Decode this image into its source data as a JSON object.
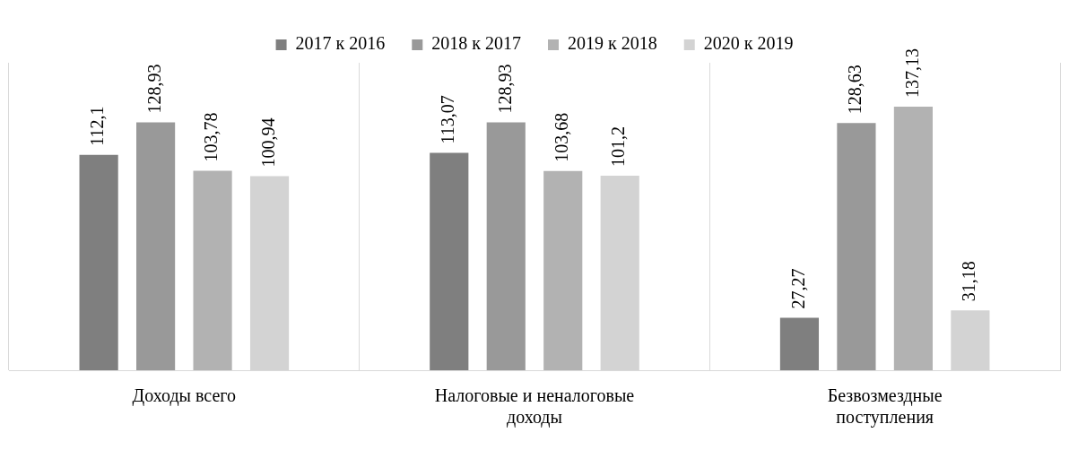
{
  "chart_data": {
    "type": "bar",
    "categories": [
      "Доходы всего",
      "Налоговые и неналоговые доходы",
      "Безвозмездные поступления"
    ],
    "series": [
      {
        "name": "2017 к 2016",
        "color": "#7f7f7f",
        "values": [
          112.1,
          113.07,
          27.27
        ],
        "value_labels": [
          "112,1",
          "113,07",
          "27,27"
        ]
      },
      {
        "name": "2018 к 2017",
        "color": "#999999",
        "values": [
          128.93,
          128.93,
          128.63
        ],
        "value_labels": [
          "128,93",
          "128,93",
          "128,63"
        ]
      },
      {
        "name": "2019 к 2018",
        "color": "#b2b2b2",
        "values": [
          103.78,
          103.68,
          137.13
        ],
        "value_labels": [
          "103,78",
          "103,68",
          "137,13"
        ]
      },
      {
        "name": "2020 к 2019",
        "color": "#d3d3d3",
        "values": [
          100.94,
          101.2,
          31.18
        ],
        "value_labels": [
          "100,94",
          "101,2",
          "31,18"
        ]
      }
    ],
    "legend": "top",
    "grid": "x"
  }
}
